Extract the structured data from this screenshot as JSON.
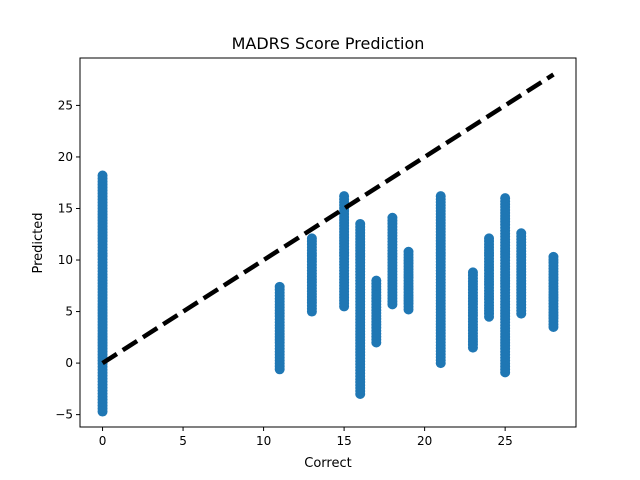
{
  "chart_data": {
    "type": "scatter",
    "title": "MADRS Score Prediction",
    "xlabel": "Correct",
    "ylabel": "Predicted",
    "xlim": [
      -1.4,
      29.4
    ],
    "ylim": [
      -6.2,
      29.6
    ],
    "xticks": [
      0,
      5,
      10,
      15,
      20,
      25
    ],
    "yticks": [
      -5,
      0,
      5,
      10,
      15,
      20,
      25
    ],
    "grid": false,
    "point_color": "#1f77b4",
    "reference_line": {
      "style": "dashed",
      "color": "#000000",
      "points": [
        [
          0,
          0
        ],
        [
          28,
          28
        ]
      ]
    },
    "columns": [
      {
        "x": 0,
        "ymin": -4.7,
        "ymax": 18.2
      },
      {
        "x": 11,
        "ymin": -0.6,
        "ymax": 7.4
      },
      {
        "x": 13,
        "ymin": 5.0,
        "ymax": 12.1
      },
      {
        "x": 15,
        "ymin": 5.5,
        "ymax": 16.2
      },
      {
        "x": 16,
        "ymin": -3.0,
        "ymax": 13.5
      },
      {
        "x": 17,
        "ymin": 2.0,
        "ymax": 8.0
      },
      {
        "x": 18,
        "ymin": 5.7,
        "ymax": 14.1
      },
      {
        "x": 19,
        "ymin": 5.2,
        "ymax": 10.8
      },
      {
        "x": 21,
        "ymin": 0.0,
        "ymax": 16.2
      },
      {
        "x": 23,
        "ymin": 1.5,
        "ymax": 8.8
      },
      {
        "x": 24,
        "ymin": 4.5,
        "ymax": 12.1
      },
      {
        "x": 25,
        "ymin": -0.9,
        "ymax": 16.0
      },
      {
        "x": 26,
        "ymin": 4.8,
        "ymax": 12.6
      },
      {
        "x": 28,
        "ymin": 3.5,
        "ymax": 10.3
      }
    ]
  }
}
